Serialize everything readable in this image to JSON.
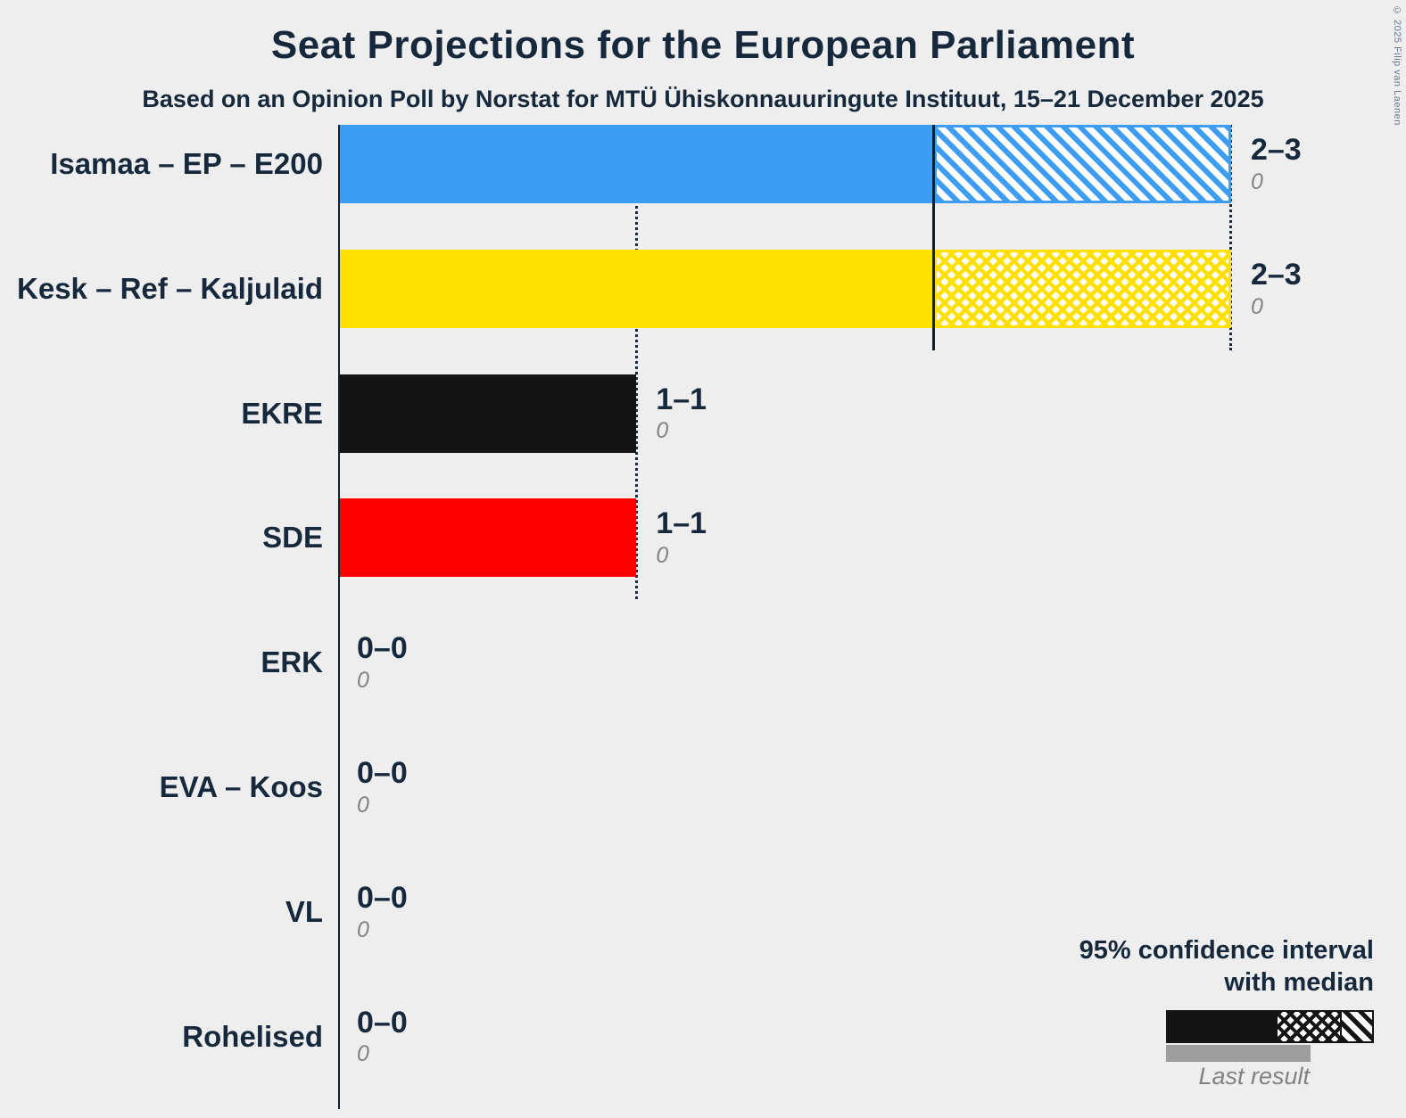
{
  "title": "Seat Projections for the European Parliament",
  "subtitle": "Based on an Opinion Poll by Norstat for MTÜ Ühiskonnauuringute Instituut, 15–21 December 2025",
  "copyright": "© 2025 Filip van Laenen",
  "colors": {
    "background": "#EEEEEE",
    "text": "#16283C",
    "muted_text": "#828282",
    "isamaa_blue": "#3D9DF3",
    "kesk_yellow": "#FFE000",
    "ekre_black": "#141414",
    "sde_red": "#FF0000",
    "last_result_gray": "#9E9E9E"
  },
  "legend": {
    "line1": "95% confidence interval",
    "line2": "with median",
    "last_result": "Last result"
  },
  "chart_data": {
    "type": "bar",
    "orientation": "horizontal",
    "x_min": 0,
    "x_max": 3,
    "unit": "seats",
    "rows": [
      {
        "party": "Isamaa – EP – E200",
        "ci_label": "2–3",
        "ci_low": 2,
        "ci_high": 3,
        "median": 2,
        "last_result": "0",
        "solid_to": 2,
        "hatch_to": 3,
        "hatch": "diagonal",
        "color": "#3D9DF3"
      },
      {
        "party": "Kesk – Ref – Kaljulaid",
        "ci_label": "2–3",
        "ci_low": 2,
        "ci_high": 3,
        "median": 3,
        "last_result": "0",
        "solid_to": 2,
        "hatch_to": 3,
        "hatch": "cross",
        "color": "#FFE000"
      },
      {
        "party": "EKRE",
        "ci_label": "1–1",
        "ci_low": 1,
        "ci_high": 1,
        "median": 1,
        "last_result": "0",
        "solid_to": 1,
        "hatch_to": 1,
        "hatch": "none",
        "color": "#141414"
      },
      {
        "party": "SDE",
        "ci_label": "1–1",
        "ci_low": 1,
        "ci_high": 1,
        "median": 1,
        "last_result": "0",
        "solid_to": 1,
        "hatch_to": 1,
        "hatch": "none",
        "color": "#FF0000"
      },
      {
        "party": "ERK",
        "ci_label": "0–0",
        "ci_low": 0,
        "ci_high": 0,
        "median": 0,
        "last_result": "0",
        "solid_to": 0,
        "hatch_to": 0,
        "hatch": "none",
        "color": ""
      },
      {
        "party": "EVA – Koos",
        "ci_label": "0–0",
        "ci_low": 0,
        "ci_high": 0,
        "median": 0,
        "last_result": "0",
        "solid_to": 0,
        "hatch_to": 0,
        "hatch": "none",
        "color": ""
      },
      {
        "party": "VL",
        "ci_label": "0–0",
        "ci_low": 0,
        "ci_high": 0,
        "median": 0,
        "last_result": "0",
        "solid_to": 0,
        "hatch_to": 0,
        "hatch": "none",
        "color": ""
      },
      {
        "party": "Rohelised",
        "ci_label": "0–0",
        "ci_low": 0,
        "ci_high": 0,
        "median": 0,
        "last_result": "0",
        "solid_to": 0,
        "hatch_to": 0,
        "hatch": "none",
        "color": ""
      }
    ],
    "gridlines": [
      {
        "value": 1,
        "style": "dotted",
        "rows_span": 4
      },
      {
        "value": 2,
        "style": "solid",
        "rows_span": 2
      },
      {
        "value": 3,
        "style": "dotted",
        "rows_span": 2
      }
    ]
  }
}
